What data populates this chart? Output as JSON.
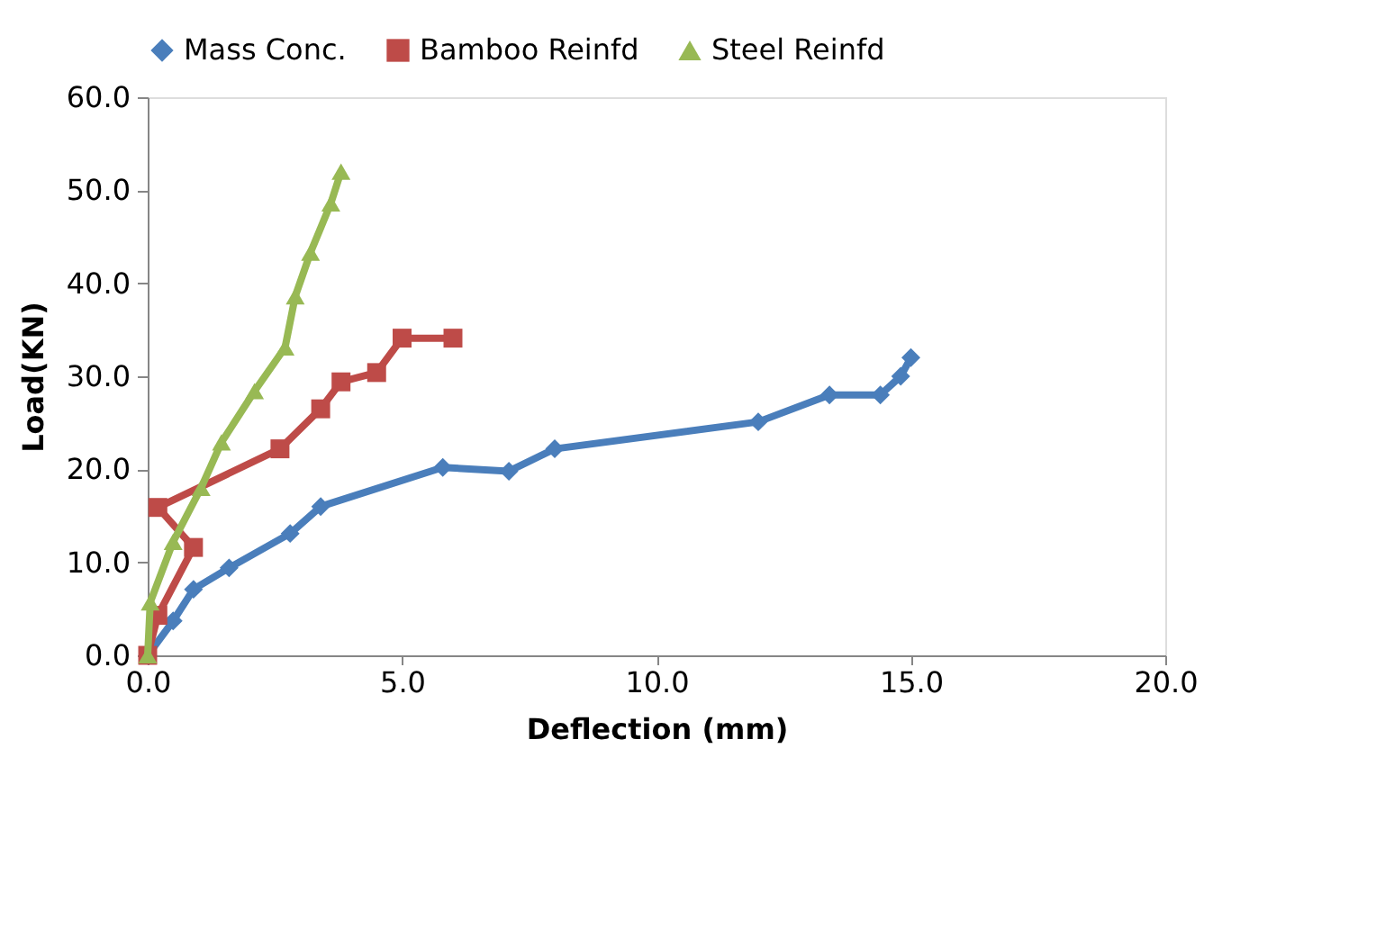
{
  "chart_data": {
    "type": "line",
    "xlabel": "Deflection (mm)",
    "ylabel": "Load(KN)",
    "xlim": [
      0,
      20
    ],
    "ylim": [
      0,
      60
    ],
    "xticks": [
      {
        "value": 0,
        "label": "0.0"
      },
      {
        "value": 5,
        "label": "5.0"
      },
      {
        "value": 10,
        "label": "10.0"
      },
      {
        "value": 15,
        "label": "15.0"
      },
      {
        "value": 20,
        "label": "20.0"
      }
    ],
    "yticks": [
      {
        "value": 0,
        "label": "0.0"
      },
      {
        "value": 10,
        "label": "10.0"
      },
      {
        "value": 20,
        "label": "20.0"
      },
      {
        "value": 30,
        "label": "30.0"
      },
      {
        "value": 40,
        "label": "40.0"
      },
      {
        "value": 50,
        "label": "50.0"
      },
      {
        "value": 60,
        "label": "60.0"
      }
    ],
    "grid": false,
    "legend": "top",
    "line_style": "solid",
    "series": [
      {
        "name": "Mass Conc.",
        "color": "#4a7ebb",
        "marker": "diamond",
        "x": [
          0,
          0.5,
          0.9,
          1.6,
          2.8,
          3.4,
          5.8,
          7.1,
          8.0,
          12.0,
          13.4,
          14.4,
          14.8,
          15.0
        ],
        "values": [
          0,
          3.7,
          7.1,
          9.4,
          13.1,
          16.0,
          20.2,
          19.8,
          22.2,
          25.1,
          28.0,
          28.0,
          30.0,
          32.0
        ]
      },
      {
        "name": "Bamboo Reinfd",
        "color": "#be4b48",
        "marker": "square",
        "x": [
          0,
          0.2,
          0.9,
          0.2,
          2.6,
          3.4,
          3.8,
          4.5,
          5.0,
          6.0
        ],
        "values": [
          0,
          4.3,
          11.6,
          15.9,
          22.2,
          26.5,
          29.4,
          30.4,
          34.1,
          34.1
        ]
      },
      {
        "name": "Steel Reinfd",
        "color": "#98b954",
        "marker": "triangle",
        "x": [
          0,
          0.05,
          0.5,
          1.05,
          1.45,
          2.1,
          2.7,
          2.9,
          3.2,
          3.6,
          3.8
        ],
        "values": [
          0,
          5.7,
          12.2,
          18.0,
          22.9,
          28.4,
          33.1,
          38.6,
          43.3,
          48.6,
          52.0
        ]
      }
    ]
  }
}
